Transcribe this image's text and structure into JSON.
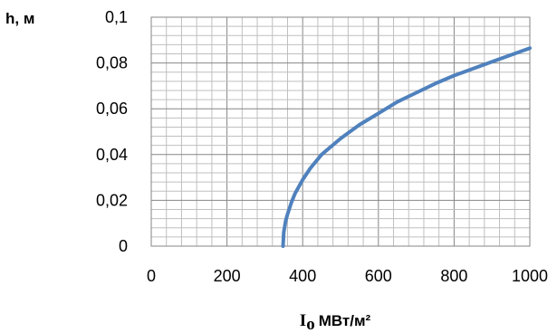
{
  "chart_data": {
    "type": "line",
    "title": "",
    "ylabel": "h, м",
    "xlabel": {
      "symbol": "I",
      "subscript": "o",
      "unit": "МВт/м²"
    },
    "xlim": [
      0,
      1000
    ],
    "ylim": [
      0,
      0.1
    ],
    "x_ticks": [
      0,
      200,
      400,
      600,
      800,
      1000
    ],
    "y_ticks": [
      0,
      0.02,
      0.04,
      0.06,
      0.08,
      0.1
    ],
    "x_tick_labels": [
      "0",
      "200",
      "400",
      "600",
      "800",
      "1000"
    ],
    "y_tick_labels": [
      "0",
      "0,02",
      "0,04",
      "0,06",
      "0,08",
      "0,1"
    ],
    "grid": true,
    "minor_grid": true,
    "legend": "none",
    "series": [
      {
        "color": "#4f81bd",
        "x": [
          348,
          350,
          355,
          360,
          370,
          380,
          400,
          420,
          450,
          500,
          550,
          600,
          650,
          700,
          750,
          800,
          850,
          900,
          950,
          1000
        ],
        "y": [
          0.0,
          0.006,
          0.011,
          0.014,
          0.019,
          0.023,
          0.029,
          0.034,
          0.04,
          0.047,
          0.053,
          0.058,
          0.063,
          0.067,
          0.071,
          0.0745,
          0.0775,
          0.0805,
          0.0835,
          0.0865
        ]
      }
    ]
  }
}
